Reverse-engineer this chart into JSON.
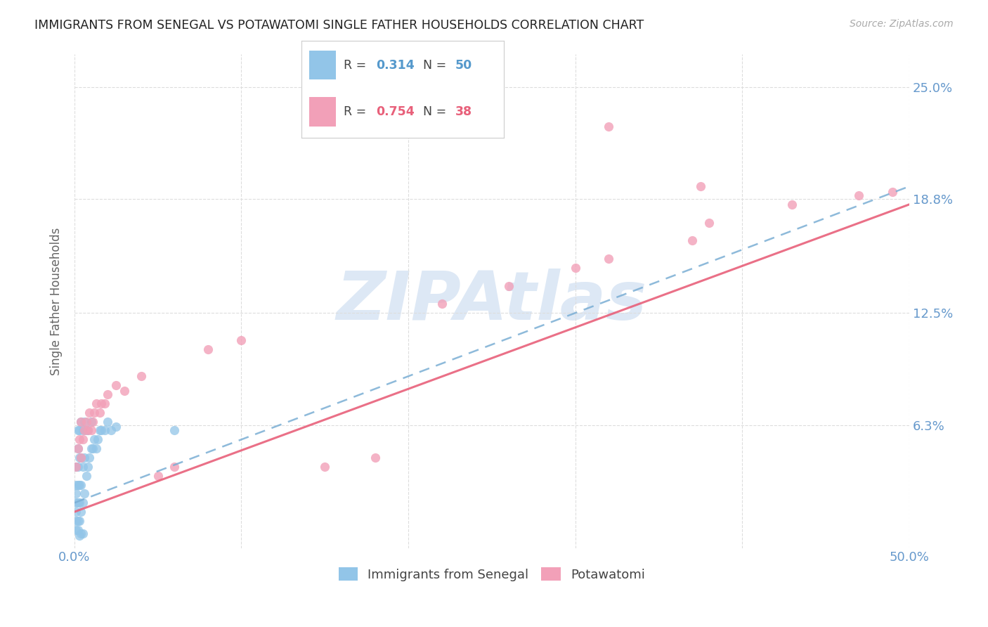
{
  "title": "IMMIGRANTS FROM SENEGAL VS POTAWATOMI SINGLE FATHER HOUSEHOLDS CORRELATION CHART",
  "source": "Source: ZipAtlas.com",
  "ylabel": "Single Father Households",
  "xlim": [
    0.0,
    0.5
  ],
  "ylim": [
    -0.005,
    0.268
  ],
  "ytick_vals": [
    0.063,
    0.125,
    0.188,
    0.25
  ],
  "ytick_labels": [
    "6.3%",
    "12.5%",
    "18.8%",
    "25.0%"
  ],
  "xtick_vals": [
    0.0,
    0.1,
    0.2,
    0.3,
    0.4,
    0.5
  ],
  "xtick_labels": [
    "0.0%",
    "",
    "",
    "",
    "",
    "50.0%"
  ],
  "legend_label1": "Immigrants from Senegal",
  "legend_label2": "Potawatomi",
  "R1": "0.314",
  "N1": "50",
  "R2": "0.754",
  "N2": "38",
  "color1": "#92c5e8",
  "color2": "#f2a0b8",
  "trendline1_color": "#7aaed4",
  "trendline2_color": "#e8607a",
  "watermark": "ZIPAtlas",
  "watermark_color": "#dde8f5",
  "background_color": "#ffffff",
  "title_color": "#222222",
  "axis_color": "#6699cc",
  "grid_color": "#dddddd",
  "senegal_x": [
    0.001,
    0.001,
    0.001,
    0.001,
    0.001,
    0.001,
    0.001,
    0.002,
    0.002,
    0.002,
    0.002,
    0.002,
    0.002,
    0.002,
    0.003,
    0.003,
    0.003,
    0.003,
    0.003,
    0.004,
    0.004,
    0.004,
    0.004,
    0.005,
    0.005,
    0.005,
    0.006,
    0.006,
    0.006,
    0.007,
    0.007,
    0.008,
    0.008,
    0.009,
    0.01,
    0.01,
    0.011,
    0.012,
    0.013,
    0.014,
    0.015,
    0.016,
    0.018,
    0.02,
    0.022,
    0.025,
    0.003,
    0.004,
    0.005,
    0.06
  ],
  "senegal_y": [
    0.005,
    0.01,
    0.015,
    0.02,
    0.025,
    0.03,
    0.04,
    0.005,
    0.01,
    0.02,
    0.03,
    0.04,
    0.05,
    0.06,
    0.01,
    0.02,
    0.03,
    0.045,
    0.06,
    0.015,
    0.03,
    0.045,
    0.065,
    0.02,
    0.04,
    0.06,
    0.025,
    0.045,
    0.065,
    0.035,
    0.06,
    0.04,
    0.06,
    0.045,
    0.05,
    0.065,
    0.05,
    0.055,
    0.05,
    0.055,
    0.06,
    0.06,
    0.06,
    0.065,
    0.06,
    0.062,
    0.002,
    0.003,
    0.003,
    0.06
  ],
  "potawatomi_x": [
    0.001,
    0.002,
    0.003,
    0.004,
    0.004,
    0.005,
    0.006,
    0.007,
    0.008,
    0.009,
    0.01,
    0.011,
    0.012,
    0.013,
    0.015,
    0.016,
    0.018,
    0.02,
    0.025,
    0.03,
    0.04,
    0.05,
    0.06,
    0.08,
    0.1,
    0.15,
    0.18,
    0.22,
    0.26,
    0.3,
    0.32,
    0.37,
    0.38,
    0.43,
    0.47,
    0.49,
    0.32,
    0.375
  ],
  "potawatomi_y": [
    0.04,
    0.05,
    0.055,
    0.045,
    0.065,
    0.055,
    0.06,
    0.065,
    0.06,
    0.07,
    0.06,
    0.065,
    0.07,
    0.075,
    0.07,
    0.075,
    0.075,
    0.08,
    0.085,
    0.082,
    0.09,
    0.035,
    0.04,
    0.105,
    0.11,
    0.04,
    0.045,
    0.13,
    0.14,
    0.15,
    0.155,
    0.165,
    0.175,
    0.185,
    0.19,
    0.192,
    0.228,
    0.195
  ],
  "trendline1_x": [
    0.0,
    0.5
  ],
  "trendline1_y": [
    0.02,
    0.195
  ],
  "trendline2_x": [
    0.0,
    0.5
  ],
  "trendline2_y": [
    0.015,
    0.185
  ]
}
